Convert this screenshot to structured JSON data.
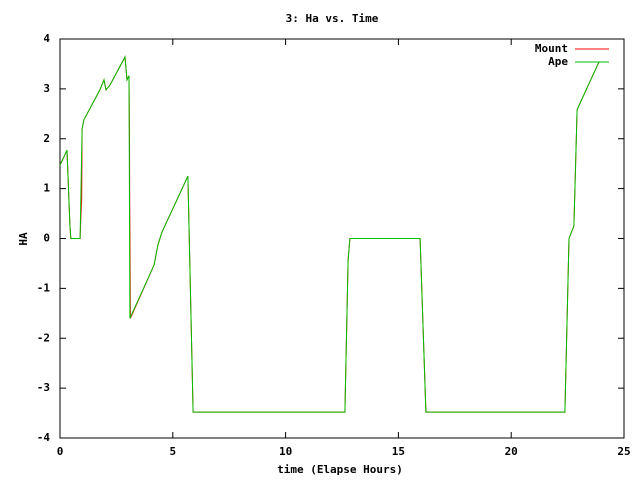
{
  "chart_data": {
    "type": "line",
    "title": "3: Ha vs. Time",
    "x_label": "time (Elapse Hours)",
    "y_label": "HA",
    "xlim": [
      0,
      25
    ],
    "xticks": [
      0,
      5,
      10,
      15,
      20,
      25
    ],
    "ylim": [
      -4,
      4
    ],
    "yticks": [
      -4,
      -3,
      -2,
      -1,
      0,
      1,
      2,
      3,
      4
    ],
    "legend": "top-right",
    "series": [
      {
        "name": "Mount",
        "color": "#ff0000",
        "x": [
          0,
          0.31,
          0.44,
          0.48,
          0.89,
          0.93,
          0.96,
          0.98,
          1.06,
          1.77,
          1.95,
          2.04,
          2.22,
          2.88,
          2.97,
          3.06,
          3.08,
          3.09,
          3.1,
          3.12,
          4.17,
          4.34,
          4.52,
          5.67,
          5.9,
          12.63,
          12.77,
          12.85,
          15.96,
          16.22,
          22.38,
          22.56,
          22.78,
          22.92,
          23.32,
          23.89
        ],
        "values": [
          1.47,
          1.77,
          0.27,
          0,
          0,
          0.5,
          0.8,
          2.2,
          2.38,
          2.98,
          3.18,
          2.98,
          3.08,
          3.64,
          3.18,
          3.26,
          2.0,
          0.8,
          0.2,
          -1.6,
          -0.53,
          -0.13,
          0.13,
          1.25,
          -3.48,
          -3.48,
          -0.43,
          0,
          0,
          -3.48,
          -3.48,
          0,
          0.25,
          2.58,
          2.98,
          3.54
        ]
      },
      {
        "name": "Ape",
        "color": "#00c000",
        "x": [
          0,
          0.31,
          0.44,
          0.48,
          0.89,
          0.98,
          1.06,
          1.77,
          1.95,
          2.04,
          2.22,
          2.88,
          2.97,
          3.06,
          3.1,
          4.17,
          4.34,
          4.52,
          5.67,
          5.9,
          12.63,
          12.77,
          12.85,
          15.96,
          16.22,
          22.38,
          22.56,
          22.78,
          22.92,
          23.32,
          23.89
        ],
        "values": [
          1.47,
          1.77,
          0.27,
          0,
          0,
          2.2,
          2.38,
          2.98,
          3.18,
          2.98,
          3.08,
          3.64,
          3.18,
          3.26,
          -1.6,
          -0.53,
          -0.13,
          0.13,
          1.25,
          -3.48,
          -3.48,
          -0.43,
          0,
          0,
          -3.48,
          -3.48,
          0,
          0.25,
          2.58,
          2.98,
          3.54
        ]
      }
    ]
  }
}
